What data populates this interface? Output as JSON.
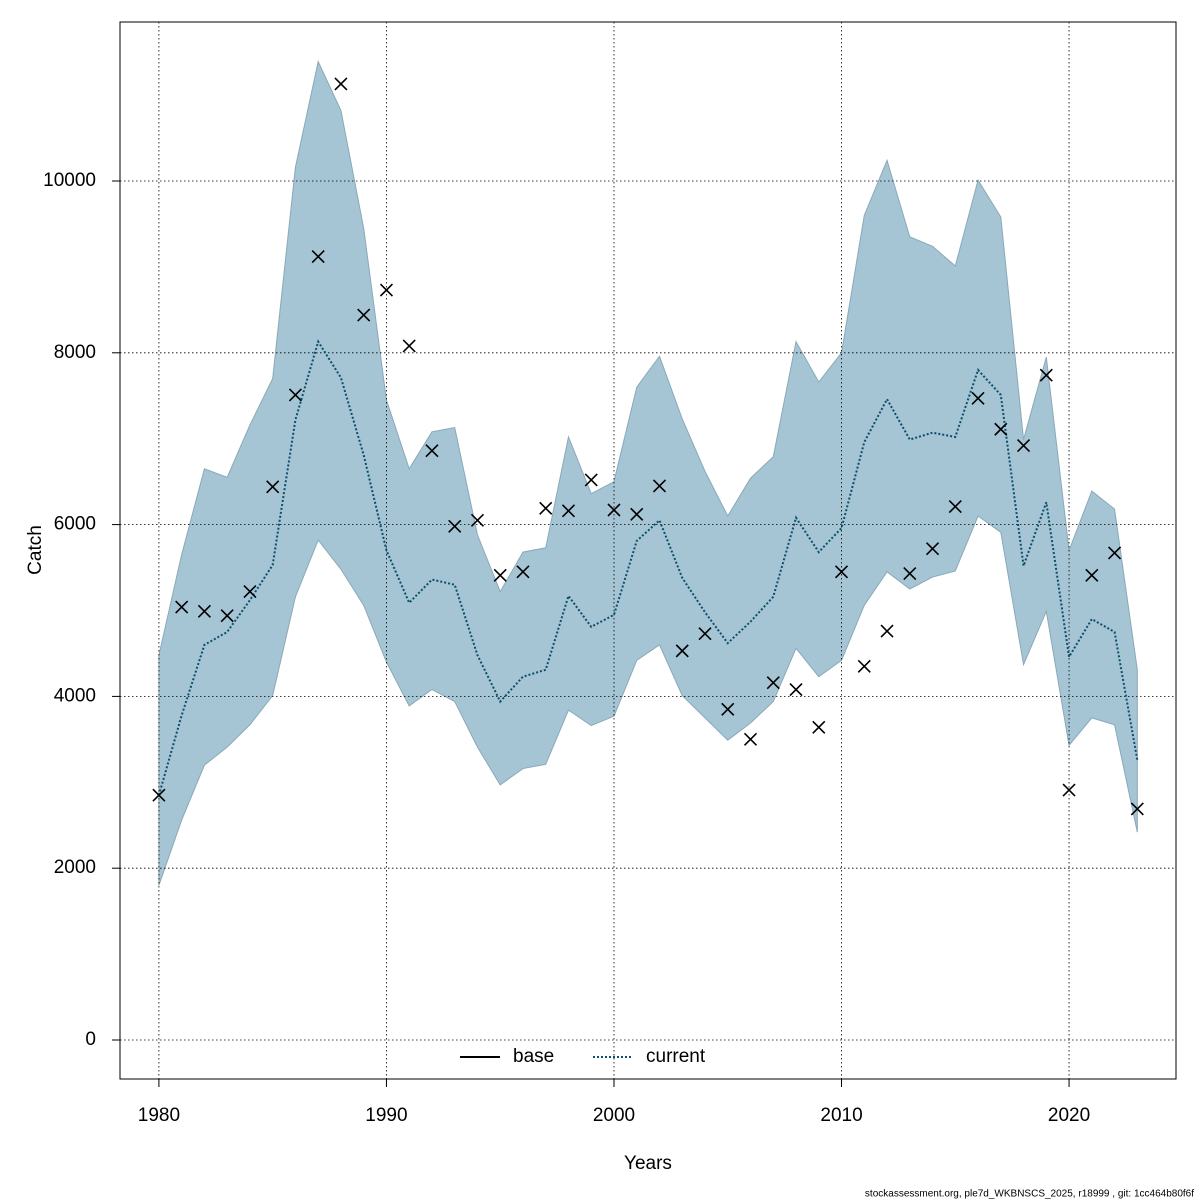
{
  "chart_data": {
    "type": "line",
    "xlabel": "Years",
    "ylabel": "Catch",
    "footer": "stockassessment.org, ple7d_WKBNSCS_2025, r18999 , git: 1cc464b80f6f",
    "x": [
      1980,
      1981,
      1982,
      1983,
      1984,
      1985,
      1986,
      1987,
      1988,
      1989,
      1990,
      1991,
      1992,
      1993,
      1994,
      1995,
      1996,
      1997,
      1998,
      1999,
      2000,
      2001,
      2002,
      2003,
      2004,
      2005,
      2006,
      2007,
      2008,
      2009,
      2010,
      2011,
      2012,
      2013,
      2014,
      2015,
      2016,
      2017,
      2018,
      2019,
      2020,
      2021,
      2022,
      2023
    ],
    "estimate": {
      "color": "#0b4f6c",
      "band_color": "#a5c4d4",
      "values": [
        2850,
        3780,
        4600,
        4750,
        5120,
        5530,
        7220,
        8130,
        7710,
        6810,
        5700,
        5090,
        5360,
        5300,
        4480,
        3940,
        4230,
        4310,
        5170,
        4810,
        4950,
        5810,
        6050,
        5380,
        4980,
        4620,
        4870,
        5160,
        6080,
        5680,
        5960,
        6960,
        7460,
        6990,
        7070,
        7020,
        7800,
        7510,
        5520,
        6260,
        4460,
        4900,
        4750,
        3260
      ],
      "upper": [
        4480,
        5650,
        6650,
        6550,
        7160,
        7700,
        10160,
        11390,
        10820,
        9450,
        7450,
        6650,
        7080,
        7130,
        5880,
        5220,
        5680,
        5730,
        7020,
        6360,
        6500,
        7600,
        7960,
        7230,
        6620,
        6100,
        6540,
        6790,
        8130,
        7660,
        8000,
        9600,
        10240,
        9350,
        9240,
        9010,
        10010,
        9580,
        6990,
        7950,
        5700,
        6390,
        6180,
        4310
      ],
      "lower": [
        1800,
        2560,
        3200,
        3410,
        3670,
        4010,
        5160,
        5820,
        5480,
        5060,
        4400,
        3890,
        4080,
        3940,
        3410,
        2970,
        3160,
        3210,
        3840,
        3660,
        3770,
        4420,
        4600,
        4010,
        3750,
        3490,
        3690,
        3940,
        4560,
        4230,
        4420,
        5060,
        5450,
        5250,
        5390,
        5460,
        6100,
        5910,
        4370,
        4990,
        3430,
        3750,
        3670,
        2420
      ]
    },
    "observed": {
      "color": "#000000",
      "values": [
        2850,
        5040,
        4990,
        4940,
        5220,
        6440,
        7510,
        9120,
        11130,
        8440,
        8730,
        8080,
        6860,
        5980,
        6050,
        5410,
        5450,
        6190,
        6160,
        6520,
        6170,
        6120,
        6450,
        4530,
        4730,
        3850,
        3500,
        4160,
        4080,
        3640,
        5450,
        4350,
        4760,
        5430,
        5720,
        6210,
        7470,
        7110,
        6920,
        7740,
        2910,
        5410,
        5670,
        2690
      ]
    },
    "legend": {
      "position": "bottom",
      "entries": [
        {
          "label": "base",
          "color": "#000000",
          "dash": "solid"
        },
        {
          "label": "current",
          "color": "#0b4f6c",
          "dash": "dotted"
        }
      ]
    },
    "xlim": [
      1978.29,
      2024.7
    ],
    "ylim": [
      -454,
      11851
    ],
    "xticks": [
      1980,
      1990,
      2000,
      2010,
      2020
    ],
    "yticks": [
      0,
      2000,
      4000,
      6000,
      8000,
      10000
    ],
    "grid": true
  }
}
